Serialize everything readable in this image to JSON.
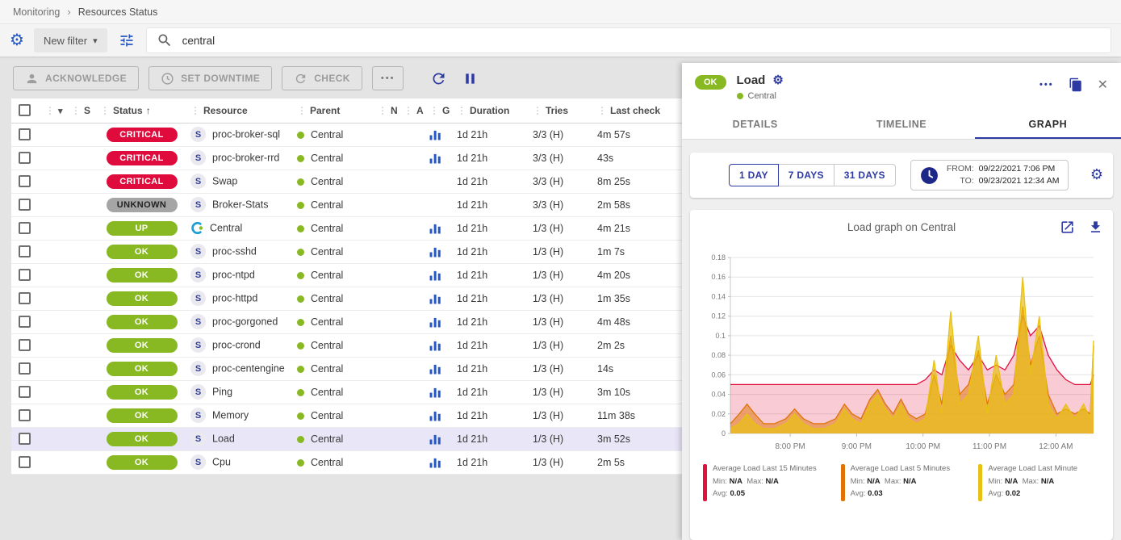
{
  "colors": {
    "accent": "#2457c5",
    "indigo": "#2e3aa3",
    "status": {
      "critical": "#e00b3d",
      "unknown": "#a5a5a5",
      "ok": "#88b923",
      "up": "#88b923"
    },
    "parent_ok_dot": "#88b923",
    "selected_row_bg": "#e9e6f7"
  },
  "icons": {
    "gear": "⚙",
    "chevron_down": "▾",
    "sort_asc": "↑",
    "more": "•••",
    "close": "✕",
    "drag_dots": "⋮",
    "breadcrumb_sep": "›"
  },
  "breadcrumb": {
    "items": [
      "Monitoring",
      "Resources Status"
    ]
  },
  "filter_bar": {
    "new_filter_label": "New filter",
    "search_value": "central"
  },
  "toolbar": {
    "acknowledge": "ACKNOWLEDGE",
    "set_downtime": "SET DOWNTIME",
    "check": "CHECK"
  },
  "table": {
    "headers": {
      "severity": "S",
      "status": "Status",
      "resource": "Resource",
      "parent": "Parent",
      "notification": "N",
      "acknowledged": "A",
      "graph": "G",
      "duration": "Duration",
      "tries": "Tries",
      "last_check": "Last check"
    },
    "sort_column": "Status",
    "sort_direction": "asc",
    "service_icon_letter": "S",
    "rows": [
      {
        "status": "CRITICAL",
        "status_key": "critical",
        "type": "service",
        "resource": "proc-broker-sql",
        "parent": "Central",
        "graph": true,
        "duration": "1d 21h",
        "tries": "3/3 (H)",
        "last_check": "4m 57s",
        "selected": false
      },
      {
        "status": "CRITICAL",
        "status_key": "critical",
        "type": "service",
        "resource": "proc-broker-rrd",
        "parent": "Central",
        "graph": true,
        "duration": "1d 21h",
        "tries": "3/3 (H)",
        "last_check": "43s",
        "selected": false
      },
      {
        "status": "CRITICAL",
        "status_key": "critical",
        "type": "service",
        "resource": "Swap",
        "parent": "Central",
        "graph": false,
        "duration": "1d 21h",
        "tries": "3/3 (H)",
        "last_check": "8m 25s",
        "selected": false
      },
      {
        "status": "UNKNOWN",
        "status_key": "unknown",
        "type": "service",
        "resource": "Broker-Stats",
        "parent": "Central",
        "graph": false,
        "duration": "1d 21h",
        "tries": "3/3 (H)",
        "last_check": "2m 58s",
        "selected": false
      },
      {
        "status": "UP",
        "status_key": "up",
        "type": "host",
        "resource": "Central",
        "parent": "Central",
        "graph": true,
        "duration": "1d 21h",
        "tries": "1/3 (H)",
        "last_check": "4m 21s",
        "selected": false
      },
      {
        "status": "OK",
        "status_key": "ok",
        "type": "service",
        "resource": "proc-sshd",
        "parent": "Central",
        "graph": true,
        "duration": "1d 21h",
        "tries": "1/3 (H)",
        "last_check": "1m 7s",
        "selected": false
      },
      {
        "status": "OK",
        "status_key": "ok",
        "type": "service",
        "resource": "proc-ntpd",
        "parent": "Central",
        "graph": true,
        "duration": "1d 21h",
        "tries": "1/3 (H)",
        "last_check": "4m 20s",
        "selected": false
      },
      {
        "status": "OK",
        "status_key": "ok",
        "type": "service",
        "resource": "proc-httpd",
        "parent": "Central",
        "graph": true,
        "duration": "1d 21h",
        "tries": "1/3 (H)",
        "last_check": "1m 35s",
        "selected": false
      },
      {
        "status": "OK",
        "status_key": "ok",
        "type": "service",
        "resource": "proc-gorgoned",
        "parent": "Central",
        "graph": true,
        "duration": "1d 21h",
        "tries": "1/3 (H)",
        "last_check": "4m 48s",
        "selected": false
      },
      {
        "status": "OK",
        "status_key": "ok",
        "type": "service",
        "resource": "proc-crond",
        "parent": "Central",
        "graph": true,
        "duration": "1d 21h",
        "tries": "1/3 (H)",
        "last_check": "2m 2s",
        "selected": false
      },
      {
        "status": "OK",
        "status_key": "ok",
        "type": "service",
        "resource": "proc-centengine",
        "parent": "Central",
        "graph": true,
        "duration": "1d 21h",
        "tries": "1/3 (H)",
        "last_check": "14s",
        "selected": false
      },
      {
        "status": "OK",
        "status_key": "ok",
        "type": "service",
        "resource": "Ping",
        "parent": "Central",
        "graph": true,
        "duration": "1d 21h",
        "tries": "1/3 (H)",
        "last_check": "3m 10s",
        "selected": false
      },
      {
        "status": "OK",
        "status_key": "ok",
        "type": "service",
        "resource": "Memory",
        "parent": "Central",
        "graph": true,
        "duration": "1d 21h",
        "tries": "1/3 (H)",
        "last_check": "11m 38s",
        "selected": false
      },
      {
        "status": "OK",
        "status_key": "ok",
        "type": "service",
        "resource": "Load",
        "parent": "Central",
        "graph": true,
        "duration": "1d 21h",
        "tries": "1/3 (H)",
        "last_check": "3m 52s",
        "selected": true
      },
      {
        "status": "OK",
        "status_key": "ok",
        "type": "service",
        "resource": "Cpu",
        "parent": "Central",
        "graph": true,
        "duration": "1d 21h",
        "tries": "1/3 (H)",
        "last_check": "2m 5s",
        "selected": false
      }
    ]
  },
  "panel": {
    "status": "OK",
    "title": "Load",
    "parent": "Central",
    "tabs": [
      "DETAILS",
      "TIMELINE",
      "GRAPH"
    ],
    "active_tab": "GRAPH",
    "time_ranges": [
      "1 DAY",
      "7 DAYS",
      "31 DAYS"
    ],
    "selected_range": "1 DAY",
    "from_label": "FROM:",
    "from_value": "09/22/2021 7:06 PM",
    "to_label": "TO:",
    "to_value": "09/23/2021 12:34 AM"
  },
  "chart_data": {
    "type": "area",
    "title": "Load graph on Central",
    "x_axis": "time, minutes after 7:06 PM on 09/22/2021",
    "xlim": [
      0,
      328
    ],
    "ylim": [
      0,
      0.18
    ],
    "grid": "horizontal",
    "legend_position": "bottom",
    "x_ticks": [
      {
        "t": 54,
        "label": "8:00 PM"
      },
      {
        "t": 114,
        "label": "9:00 PM"
      },
      {
        "t": 174,
        "label": "10:00 PM"
      },
      {
        "t": 234,
        "label": "11:00 PM"
      },
      {
        "t": 294,
        "label": "12:00 AM"
      }
    ],
    "y_ticks": [
      {
        "v": 0,
        "label": "0"
      },
      {
        "v": 0.02,
        "label": "0.02"
      },
      {
        "v": 0.04,
        "label": "0.04"
      },
      {
        "v": 0.06,
        "label": "0.06"
      },
      {
        "v": 0.08,
        "label": "0.08"
      },
      {
        "v": 0.1,
        "label": "0.1"
      },
      {
        "v": 0.12,
        "label": "0.12"
      },
      {
        "v": 0.14,
        "label": "0.14"
      },
      {
        "v": 0.16,
        "label": "0.16"
      },
      {
        "v": 0.18,
        "label": "0.18"
      }
    ],
    "x": [
      0,
      8,
      15,
      22,
      30,
      40,
      50,
      58,
      66,
      75,
      85,
      95,
      103,
      110,
      118,
      126,
      133,
      140,
      147,
      154,
      161,
      168,
      176,
      184,
      191,
      199,
      207,
      215,
      224,
      232,
      240,
      248,
      256,
      264,
      271,
      279,
      287,
      295,
      303,
      311,
      319,
      325,
      328
    ],
    "series": [
      {
        "name": "Average Load Last 15 Minutes",
        "color": "#e3103d",
        "fill_opacity": 0.22,
        "values": [
          0.05,
          0.05,
          0.05,
          0.05,
          0.05,
          0.05,
          0.05,
          0.05,
          0.05,
          0.05,
          0.05,
          0.05,
          0.05,
          0.05,
          0.05,
          0.05,
          0.05,
          0.05,
          0.05,
          0.05,
          0.05,
          0.05,
          0.055,
          0.065,
          0.06,
          0.09,
          0.075,
          0.065,
          0.08,
          0.065,
          0.07,
          0.065,
          0.08,
          0.12,
          0.1,
          0.11,
          0.08,
          0.065,
          0.055,
          0.05,
          0.05,
          0.05,
          0.06
        ],
        "legend": {
          "min": "N/A",
          "max": "N/A",
          "avg": "0.05"
        }
      },
      {
        "name": "Average Load Last 5 Minutes",
        "color": "#df7305",
        "fill_opacity": 0.5,
        "values": [
          0.01,
          0.02,
          0.03,
          0.02,
          0.01,
          0.01,
          0.015,
          0.025,
          0.015,
          0.01,
          0.01,
          0.015,
          0.03,
          0.02,
          0.015,
          0.035,
          0.045,
          0.03,
          0.02,
          0.035,
          0.02,
          0.015,
          0.02,
          0.06,
          0.03,
          0.1,
          0.04,
          0.05,
          0.085,
          0.03,
          0.06,
          0.04,
          0.05,
          0.13,
          0.07,
          0.1,
          0.04,
          0.02,
          0.025,
          0.02,
          0.025,
          0.02,
          0.09
        ],
        "legend": {
          "min": "N/A",
          "max": "N/A",
          "avg": "0.03"
        }
      },
      {
        "name": "Average Load Last Minute",
        "color": "#e8c113",
        "fill_opacity": 0.7,
        "values": [
          0.005,
          0.01,
          0.02,
          0.01,
          0.005,
          0.005,
          0.01,
          0.02,
          0.01,
          0.005,
          0.005,
          0.01,
          0.025,
          0.015,
          0.01,
          0.03,
          0.04,
          0.025,
          0.015,
          0.03,
          0.015,
          0.01,
          0.015,
          0.075,
          0.02,
          0.125,
          0.03,
          0.04,
          0.1,
          0.02,
          0.08,
          0.03,
          0.04,
          0.16,
          0.06,
          0.12,
          0.03,
          0.015,
          0.03,
          0.015,
          0.03,
          0.015,
          0.095
        ],
        "legend": {
          "min": "N/A",
          "max": "N/A",
          "avg": "0.02"
        }
      }
    ]
  }
}
